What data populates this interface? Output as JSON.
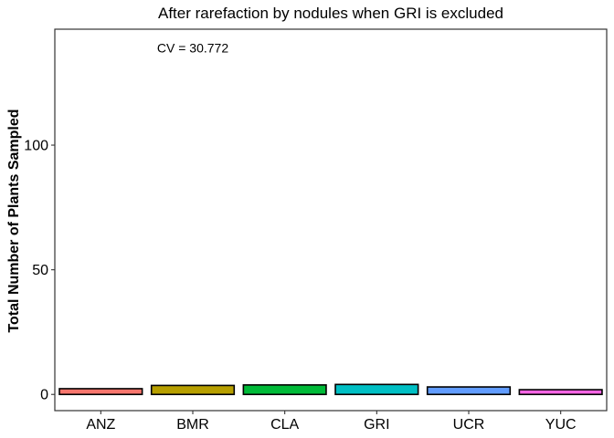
{
  "chart_data": {
    "type": "bar",
    "title": "After rarefaction by nodules when GRI is excluded",
    "xlabel": "",
    "ylabel": "Total Number of Plants Sampled",
    "categories": [
      "ANZ",
      "BMR",
      "CLA",
      "GRI",
      "UCR",
      "YUC"
    ],
    "values": [
      2.3,
      3.6,
      3.8,
      4.0,
      3.0,
      1.9
    ],
    "colors": [
      "#F8766D",
      "#B79F00",
      "#00BA38",
      "#00BFC4",
      "#619CFF",
      "#F564E3"
    ],
    "yticks": [
      0,
      50,
      100
    ],
    "ylim": [
      -6.5,
      146.5
    ],
    "grid": false,
    "legend": "none",
    "annotation": {
      "text": "CV = 30.772",
      "x": "BMR",
      "y": 139
    }
  }
}
